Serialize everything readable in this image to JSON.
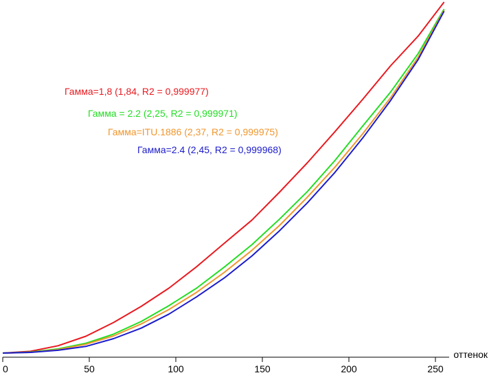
{
  "chart_data": {
    "type": "line",
    "xlabel": "оттенок",
    "ylabel": "",
    "xlim": [
      0,
      255
    ],
    "ylim": [
      0,
      1
    ],
    "grid": false,
    "x_ticks": [
      0,
      50,
      100,
      150,
      200,
      250
    ],
    "x": [
      0,
      16,
      32,
      48,
      64,
      80,
      96,
      112,
      128,
      144,
      160,
      176,
      192,
      208,
      224,
      240,
      255
    ],
    "series": [
      {
        "name": "Гамма=1,8 (1,84, R2 = 0,999977)",
        "color": "#e8191f",
        "values": [
          0,
          0.005,
          0.021,
          0.048,
          0.087,
          0.133,
          0.185,
          0.246,
          0.313,
          0.379,
          0.459,
          0.542,
          0.631,
          0.723,
          0.818,
          0.903,
          1.0
        ]
      },
      {
        "name": "Гамма = 2.2 (2,25, R2 = 0,999971)",
        "color": "#22dd22",
        "values": [
          0,
          0.003,
          0.012,
          0.028,
          0.054,
          0.09,
          0.135,
          0.185,
          0.245,
          0.309,
          0.382,
          0.46,
          0.549,
          0.647,
          0.743,
          0.853,
          0.98
        ]
      },
      {
        "name": "Гамма=ITU.1886 (2,37, R2 = 0,999975)",
        "color": "#f0962d",
        "values": [
          0,
          0.002,
          0.01,
          0.025,
          0.049,
          0.083,
          0.124,
          0.173,
          0.23,
          0.293,
          0.364,
          0.444,
          0.53,
          0.625,
          0.727,
          0.843,
          0.977
        ]
      },
      {
        "name": "Гамма=2.4 (2,45, R2 = 0,999968)",
        "color": "#1a1acc",
        "values": [
          0,
          0.002,
          0.008,
          0.019,
          0.041,
          0.071,
          0.111,
          0.16,
          0.214,
          0.277,
          0.349,
          0.428,
          0.515,
          0.613,
          0.719,
          0.836,
          0.974
        ]
      }
    ]
  }
}
